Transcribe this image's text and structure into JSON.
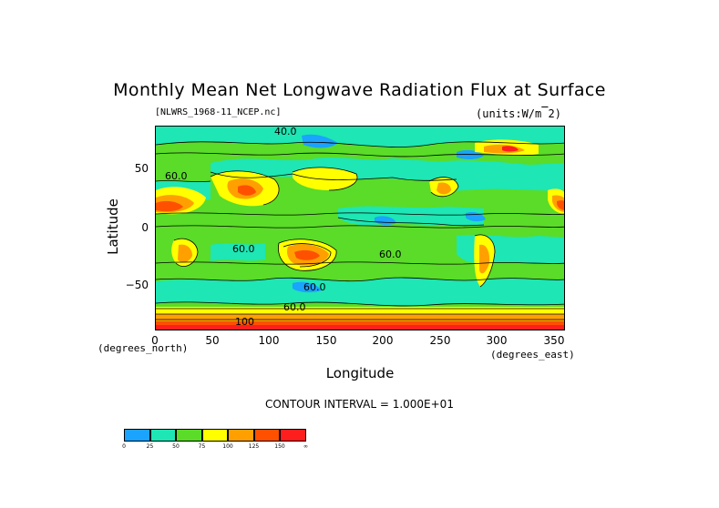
{
  "title": "Monthly Mean Net Longwave Radiation Flux at Surface",
  "file_label": "[NLWRS_1968-11_NCEP.nc]",
  "units_label": "(units:W/m^2)",
  "axes": {
    "x_label": "Longitude",
    "y_label": "Latitude",
    "x_unit": "(degrees_east)",
    "y_unit": "(degrees_north)",
    "x_ticks": [
      "0",
      "50",
      "100",
      "150",
      "200",
      "250",
      "300",
      "350"
    ],
    "y_ticks": [
      "50",
      "0",
      "−50"
    ],
    "x_range": [
      0,
      360
    ],
    "y_range": [
      -90,
      90
    ]
  },
  "contour_interval": "CONTOUR INTERVAL = 1.000E+01",
  "contour_labels": [
    "40.0",
    "60.0",
    "60.0",
    "60.0",
    "60.0",
    "60.0",
    "100"
  ],
  "colorbar": {
    "colors": [
      "#1aa3ff",
      "#1ee6b4",
      "#5adc28",
      "#ffff00",
      "#ffa000",
      "#ff5000",
      "#ff1e1e"
    ],
    "labels": [
      "0",
      "25",
      "50",
      "75",
      "100",
      "125",
      "150",
      "∞"
    ]
  },
  "palette": {
    "blue": "#1aa3ff",
    "cyan": "#1ee6b4",
    "green": "#5adc28",
    "yellow": "#ffff00",
    "orange": "#ffa000",
    "darkorange": "#ff5000",
    "red": "#ff1e1e"
  }
}
